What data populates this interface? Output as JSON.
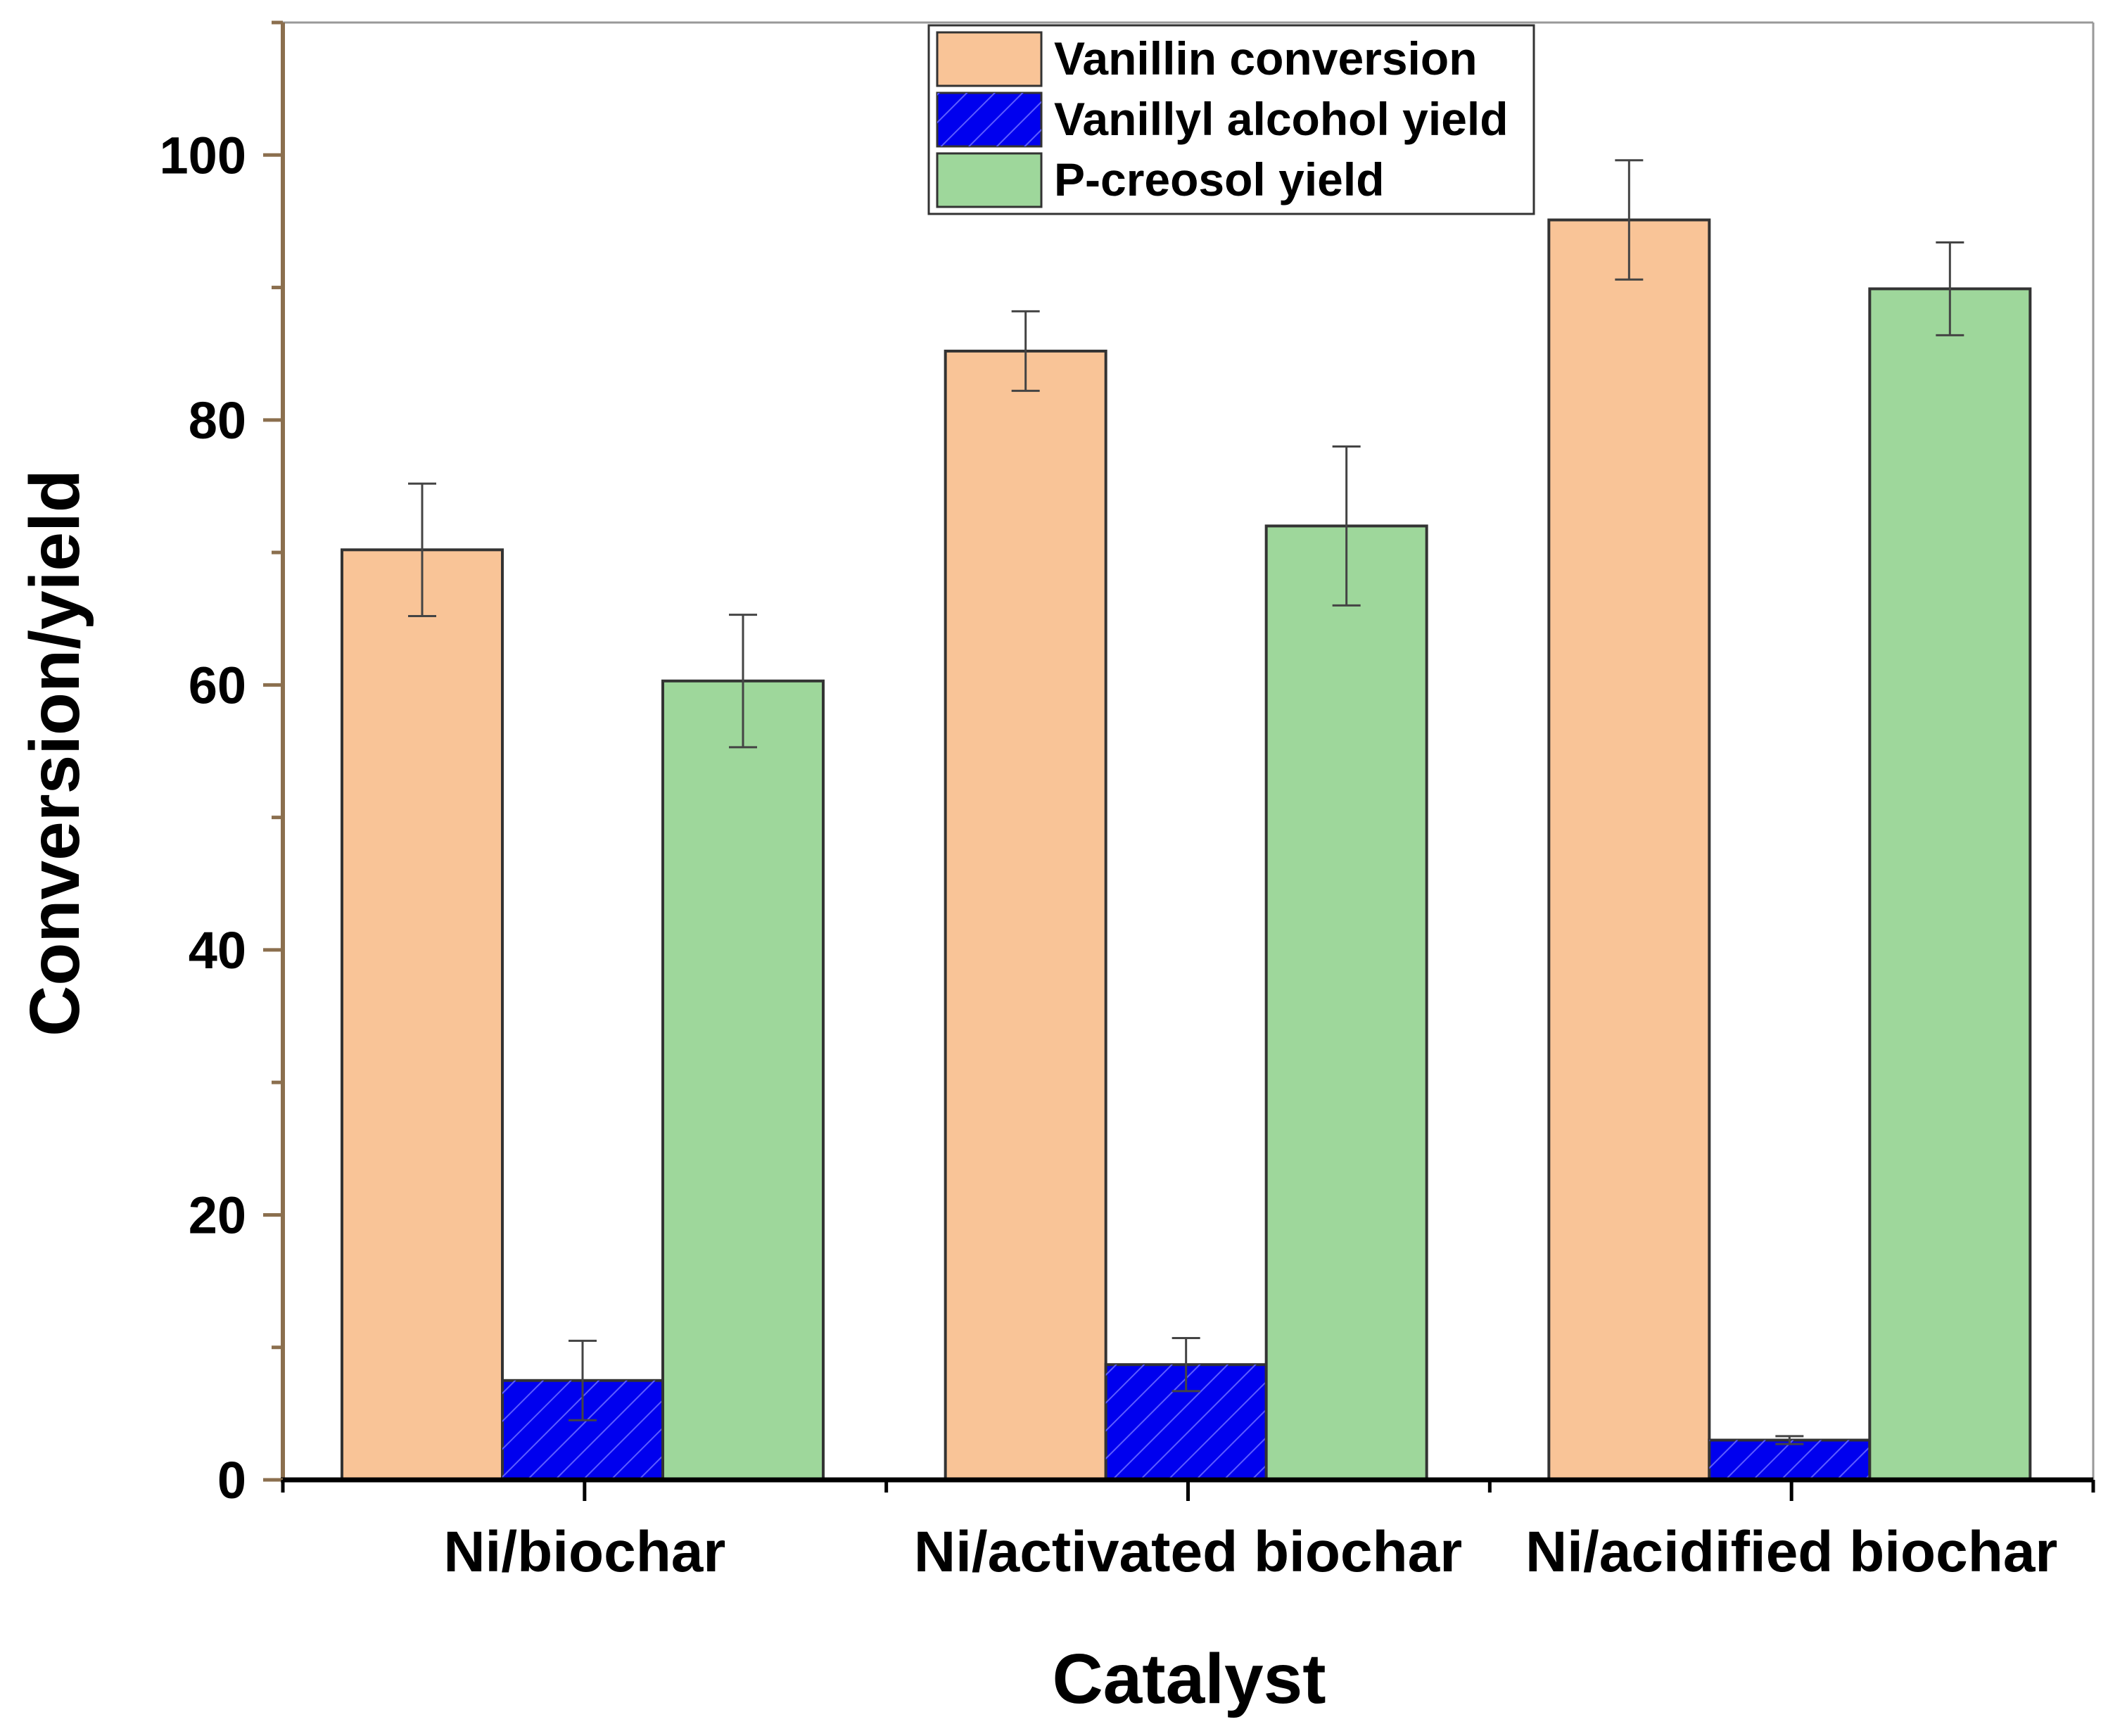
{
  "chart_data": {
    "type": "bar",
    "title": "",
    "xlabel": "Catalyst",
    "ylabel": "Conversion/yield",
    "ylim": [
      0,
      110
    ],
    "yticks": [
      "0",
      "20",
      "40",
      "60",
      "80",
      "100"
    ],
    "categories": [
      "Ni/biochar",
      "Ni/activated biochar",
      "Ni/acidified biochar"
    ],
    "series": [
      {
        "name": "Vanillin conversion",
        "color": "#f9c497",
        "values": [
          70.2,
          85.2,
          95.1
        ],
        "errors": [
          5.0,
          3.0,
          4.5
        ],
        "pattern": "none"
      },
      {
        "name": "Vanillyl alcohol yield",
        "color": "#0000ee",
        "values": [
          7.5,
          8.7,
          3.0
        ],
        "errors": [
          3.0,
          2.0,
          0.3
        ],
        "pattern": "hatch"
      },
      {
        "name": "P-creosol yield",
        "color": "#9ed79b",
        "values": [
          60.3,
          72.0,
          89.9
        ],
        "errors": [
          5.0,
          6.0,
          3.5
        ],
        "pattern": "none"
      }
    ],
    "legend_position": "top-center",
    "colors": {
      "axis": "#8b6f4e",
      "bar_edge": "#333333",
      "text": "#000000"
    }
  }
}
